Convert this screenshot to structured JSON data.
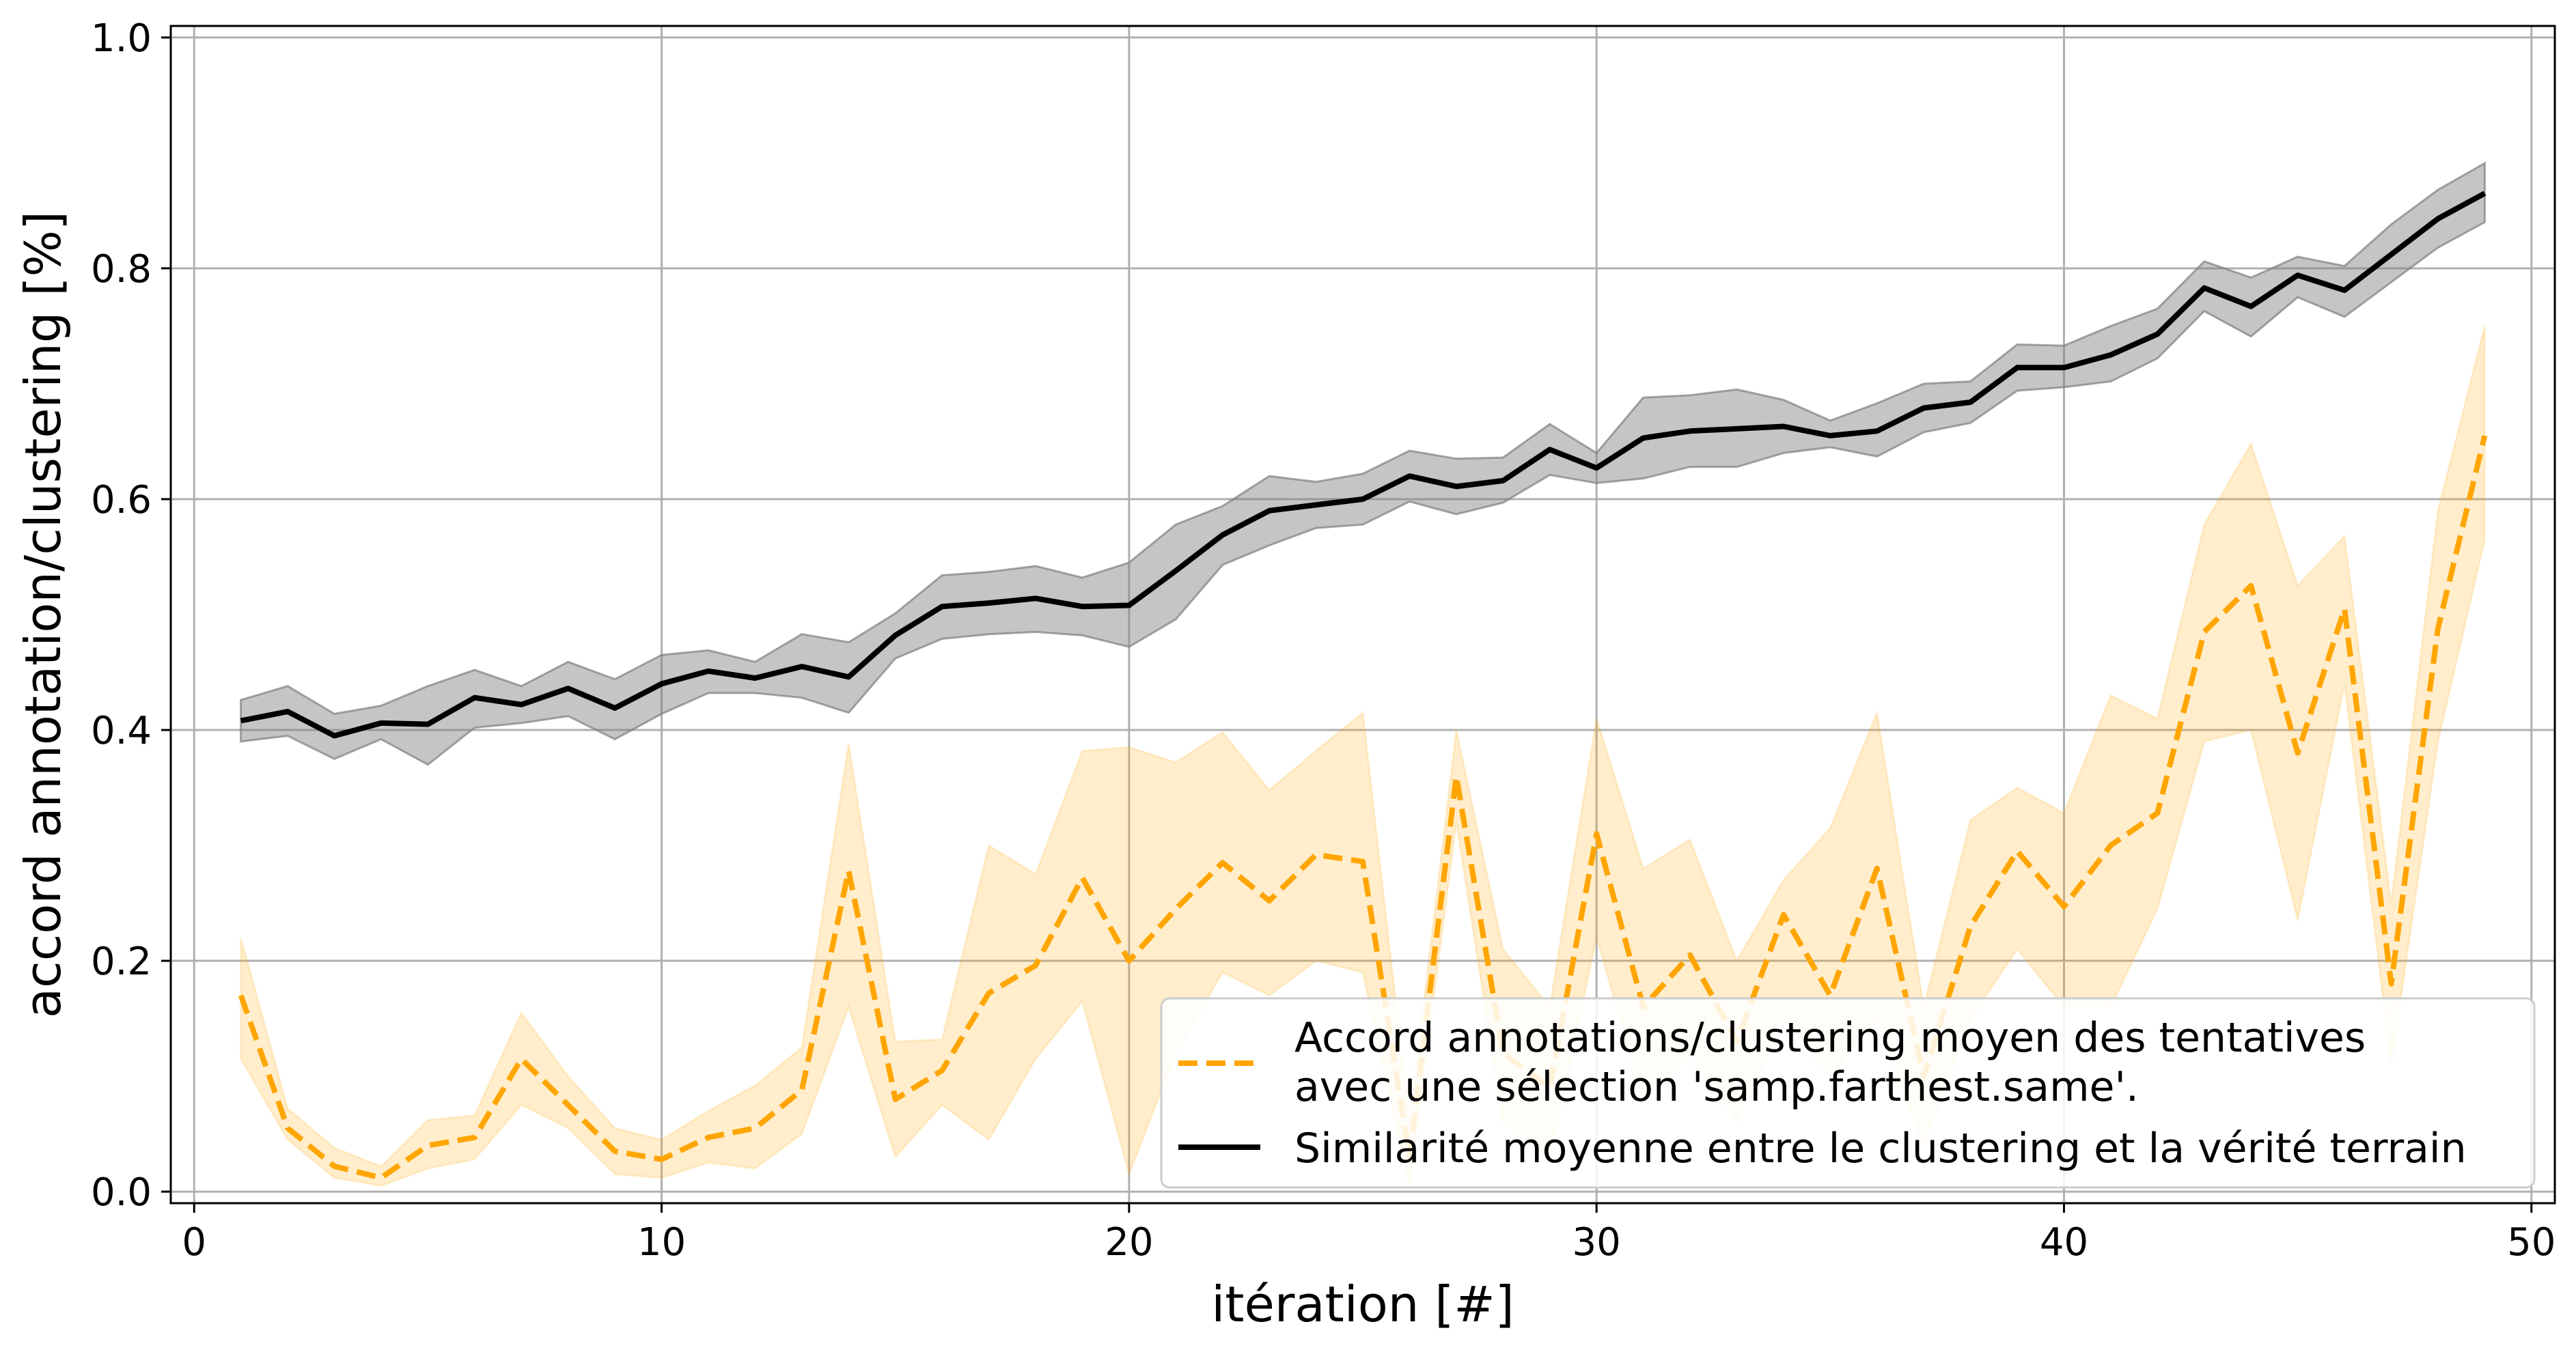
{
  "chart_data": {
    "type": "line",
    "xlabel": "itération [#]",
    "ylabel": "accord annotation/clustering [%]",
    "xlim": [
      -0.5,
      50.5
    ],
    "ylim": [
      -0.01,
      1.01
    ],
    "xticks": [
      0,
      10,
      20,
      30,
      40,
      50
    ],
    "xtick_labels": [
      "0",
      "10",
      "20",
      "30",
      "40",
      "50"
    ],
    "yticks": [
      0.0,
      0.2,
      0.4,
      0.6,
      0.8,
      1.0
    ],
    "ytick_labels": [
      "0.0",
      "0.2",
      "0.4",
      "0.6",
      "0.8",
      "1.0"
    ],
    "grid": true,
    "legend_position": "bottom-right",
    "x": [
      1,
      2,
      3,
      4,
      5,
      6,
      7,
      8,
      9,
      10,
      11,
      12,
      13,
      14,
      15,
      16,
      17,
      18,
      19,
      20,
      21,
      22,
      23,
      24,
      25,
      26,
      27,
      28,
      29,
      30,
      31,
      32,
      33,
      34,
      35,
      36,
      37,
      38,
      39,
      40,
      41,
      42,
      43,
      44,
      45,
      46,
      47,
      48,
      49
    ],
    "series": [
      {
        "name": "Accord annotations/clustering moyen des tentatives\navec une sélection 'samp.farthest.same'.",
        "legend_lines": [
          "Accord annotations/clustering moyen des tentatives",
          "avec une sélection 'samp.farthest.same'."
        ],
        "color": "#ffa500",
        "band_color": "#ffa500",
        "linestyle": "dashed",
        "values": [
          0.17,
          0.055,
          0.022,
          0.012,
          0.04,
          0.047,
          0.115,
          0.075,
          0.035,
          0.028,
          0.047,
          0.055,
          0.088,
          0.278,
          0.08,
          0.105,
          0.172,
          0.196,
          0.272,
          0.2,
          0.245,
          0.285,
          0.252,
          0.292,
          0.286,
          0.03,
          0.36,
          0.12,
          0.09,
          0.31,
          0.16,
          0.205,
          0.13,
          0.24,
          0.17,
          0.28,
          0.1,
          0.23,
          0.295,
          0.247,
          0.3,
          0.328,
          0.485,
          0.525,
          0.38,
          0.505,
          0.18,
          0.488,
          0.655
        ],
        "lower": [
          0.115,
          0.045,
          0.012,
          0.005,
          0.02,
          0.028,
          0.075,
          0.055,
          0.015,
          0.012,
          0.025,
          0.02,
          0.05,
          0.16,
          0.03,
          0.075,
          0.045,
          0.115,
          0.165,
          0.015,
          0.12,
          0.19,
          0.17,
          0.2,
          0.19,
          0.005,
          0.32,
          0.06,
          0.03,
          0.22,
          0.08,
          0.12,
          0.06,
          0.15,
          0.1,
          0.15,
          0.04,
          0.15,
          0.21,
          0.16,
          0.16,
          0.245,
          0.39,
          0.4,
          0.235,
          0.44,
          0.11,
          0.39,
          0.565
        ],
        "upper": [
          0.22,
          0.072,
          0.038,
          0.022,
          0.062,
          0.066,
          0.155,
          0.1,
          0.055,
          0.045,
          0.07,
          0.092,
          0.125,
          0.388,
          0.13,
          0.132,
          0.3,
          0.275,
          0.382,
          0.385,
          0.372,
          0.398,
          0.348,
          0.382,
          0.415,
          0.06,
          0.4,
          0.21,
          0.16,
          0.41,
          0.28,
          0.305,
          0.2,
          0.27,
          0.315,
          0.415,
          0.16,
          0.322,
          0.35,
          0.328,
          0.43,
          0.41,
          0.578,
          0.648,
          0.525,
          0.568,
          0.25,
          0.59,
          0.75
        ]
      },
      {
        "name": "Similarité moyenne entre le clustering et la vérité terrain",
        "legend_lines": [
          "Similarité moyenne entre le clustering et la vérité terrain"
        ],
        "color": "#000000",
        "band_color": "#7f7f7f",
        "linestyle": "solid",
        "values": [
          0.408,
          0.416,
          0.395,
          0.406,
          0.405,
          0.428,
          0.422,
          0.436,
          0.419,
          0.44,
          0.451,
          0.445,
          0.455,
          0.446,
          0.482,
          0.507,
          0.51,
          0.514,
          0.507,
          0.508,
          0.538,
          0.569,
          0.59,
          0.595,
          0.6,
          0.62,
          0.611,
          0.616,
          0.643,
          0.627,
          0.653,
          0.659,
          0.661,
          0.663,
          0.655,
          0.659,
          0.679,
          0.684,
          0.714,
          0.714,
          0.725,
          0.743,
          0.783,
          0.767,
          0.794,
          0.781,
          0.812,
          0.843,
          0.865
        ],
        "lower": [
          0.39,
          0.395,
          0.375,
          0.392,
          0.37,
          0.402,
          0.406,
          0.412,
          0.392,
          0.414,
          0.432,
          0.432,
          0.428,
          0.415,
          0.462,
          0.479,
          0.483,
          0.485,
          0.482,
          0.472,
          0.496,
          0.543,
          0.56,
          0.575,
          0.578,
          0.598,
          0.587,
          0.597,
          0.621,
          0.614,
          0.618,
          0.628,
          0.628,
          0.64,
          0.645,
          0.637,
          0.658,
          0.666,
          0.694,
          0.697,
          0.702,
          0.722,
          0.763,
          0.741,
          0.775,
          0.758,
          0.788,
          0.818,
          0.84
        ],
        "upper": [
          0.426,
          0.438,
          0.414,
          0.421,
          0.438,
          0.452,
          0.438,
          0.459,
          0.444,
          0.465,
          0.469,
          0.459,
          0.483,
          0.476,
          0.501,
          0.534,
          0.537,
          0.542,
          0.532,
          0.545,
          0.578,
          0.594,
          0.62,
          0.615,
          0.622,
          0.642,
          0.635,
          0.636,
          0.665,
          0.64,
          0.688,
          0.69,
          0.695,
          0.686,
          0.668,
          0.683,
          0.7,
          0.702,
          0.734,
          0.733,
          0.75,
          0.765,
          0.806,
          0.792,
          0.81,
          0.802,
          0.838,
          0.868,
          0.891
        ]
      }
    ]
  }
}
